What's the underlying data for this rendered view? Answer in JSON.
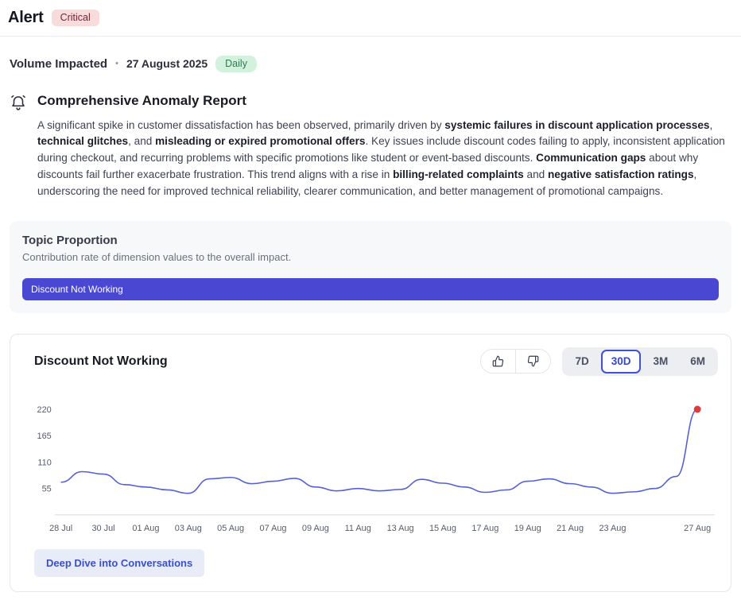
{
  "header": {
    "title": "Alert",
    "severity_badge": "Critical"
  },
  "meta": {
    "metric_label": "Volume Impacted",
    "separator": "•",
    "date": "27 August 2025",
    "frequency_badge": "Daily"
  },
  "report": {
    "icon": "alarm-bell-icon",
    "title": "Comprehensive Anomaly Report",
    "paragraph": [
      {
        "text": "A significant spike in customer dissatisfaction has been observed, primarily driven by ",
        "bold": false
      },
      {
        "text": "systemic failures in discount application processes",
        "bold": true
      },
      {
        "text": ", ",
        "bold": false
      },
      {
        "text": "technical glitches",
        "bold": true
      },
      {
        "text": ", and ",
        "bold": false
      },
      {
        "text": "misleading or expired promotional offers",
        "bold": true
      },
      {
        "text": ". Key issues include discount codes failing to apply, inconsistent application during checkout, and recurring problems with specific promotions like student or event-based discounts. ",
        "bold": false
      },
      {
        "text": "Communication gaps",
        "bold": true
      },
      {
        "text": " about why discounts fail further exacerbate frustration. This trend aligns with a rise in ",
        "bold": false
      },
      {
        "text": "billing-related complaints",
        "bold": true
      },
      {
        "text": " and ",
        "bold": false
      },
      {
        "text": "negative satisfaction ratings",
        "bold": true
      },
      {
        "text": ", underscoring the need for improved technical reliability, clearer communication, and better management of promotional campaigns.",
        "bold": false
      }
    ]
  },
  "topic_proportion": {
    "title": "Topic Proportion",
    "subtitle": "Contribution rate of dimension values to the overall impact.",
    "bars": [
      {
        "label": "Discount Not Working",
        "value_pct": 100,
        "color": "#4a47d2"
      }
    ]
  },
  "chart_card": {
    "title": "Discount Not Working",
    "feedback_icons": [
      "thumbs-up-icon",
      "thumbs-down-icon"
    ],
    "ranges": [
      {
        "label": "7D",
        "active": false
      },
      {
        "label": "30D",
        "active": true
      },
      {
        "label": "3M",
        "active": false
      },
      {
        "label": "6M",
        "active": false
      }
    ],
    "deep_dive_button": "Deep Dive into Conversations"
  },
  "chart_data": {
    "type": "line",
    "title": "Discount Not Working",
    "x": [
      "28 Jul",
      "29 Jul",
      "30 Jul",
      "31 Jul",
      "01 Aug",
      "02 Aug",
      "03 Aug",
      "04 Aug",
      "05 Aug",
      "06 Aug",
      "07 Aug",
      "08 Aug",
      "09 Aug",
      "10 Aug",
      "11 Aug",
      "12 Aug",
      "13 Aug",
      "14 Aug",
      "15 Aug",
      "16 Aug",
      "17 Aug",
      "18 Aug",
      "19 Aug",
      "20 Aug",
      "21 Aug",
      "22 Aug",
      "23 Aug",
      "24 Aug",
      "25 Aug",
      "26 Aug",
      "27 Aug"
    ],
    "values": [
      68,
      90,
      85,
      63,
      58,
      52,
      45,
      75,
      78,
      65,
      70,
      76,
      58,
      50,
      55,
      50,
      53,
      74,
      66,
      58,
      47,
      52,
      70,
      75,
      65,
      58,
      45,
      48,
      55,
      80,
      220
    ],
    "y_ticks": [
      55,
      110,
      165,
      220
    ],
    "ylim": [
      0,
      240
    ],
    "x_tick_labels": [
      {
        "label": "28 Jul",
        "index": 0
      },
      {
        "label": "30 Jul",
        "index": 2
      },
      {
        "label": "01 Aug",
        "index": 4
      },
      {
        "label": "03 Aug",
        "index": 6
      },
      {
        "label": "05 Aug",
        "index": 8
      },
      {
        "label": "07 Aug",
        "index": 10
      },
      {
        "label": "09 Aug",
        "index": 12
      },
      {
        "label": "11 Aug",
        "index": 14
      },
      {
        "label": "13 Aug",
        "index": 16
      },
      {
        "label": "15 Aug",
        "index": 18
      },
      {
        "label": "17 Aug",
        "index": 20
      },
      {
        "label": "19 Aug",
        "index": 22
      },
      {
        "label": "21 Aug",
        "index": 24
      },
      {
        "label": "23 Aug",
        "index": 26
      },
      {
        "label": "27 Aug",
        "index": 30
      }
    ],
    "line_color": "#5560d4",
    "endpoint_color": "#e03a3e",
    "axis_color": "#d8dbe2",
    "tick_text_color": "#565c68",
    "grid": false,
    "legend": "none"
  }
}
